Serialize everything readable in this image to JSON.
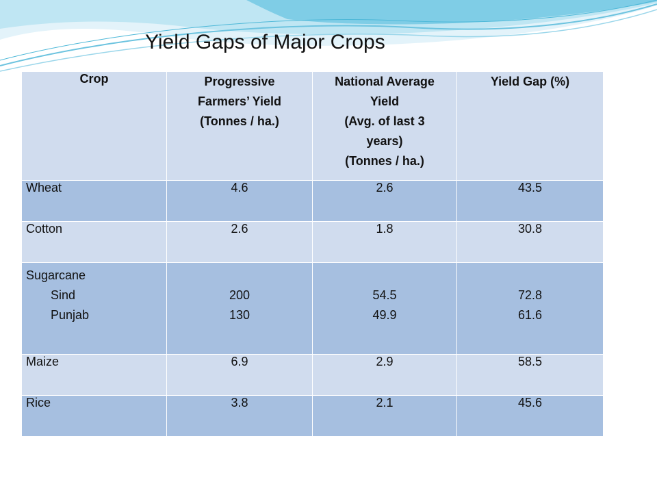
{
  "slide": {
    "title": "Yield Gaps of Major Crops",
    "accent_color": "#4db8d8",
    "gap_text_color": "#e00000"
  },
  "table": {
    "headers": {
      "crop": "Crop",
      "progressive": [
        "Progressive",
        "Farmers’ Yield",
        "(Tonnes / ha.)"
      ],
      "national": [
        "National Average",
        "Yield",
        "(Avg. of last 3",
        "years)",
        "(Tonnes / ha.)"
      ],
      "gap": "Yield Gap (%)"
    },
    "rows": [
      {
        "crop": "Wheat",
        "progressive": "4.6",
        "national": "2.6",
        "gap": "43.5"
      },
      {
        "crop": "Cotton",
        "progressive": "2.6",
        "national": "1.8",
        "gap": "30.8"
      },
      {
        "crop": "Sugarcane",
        "subrows": [
          {
            "crop": "Sind",
            "progressive": "200",
            "national": "54.5",
            "gap": "72.8"
          },
          {
            "crop": "Punjab",
            "progressive": "130",
            "national": "49.9",
            "gap": "61.6"
          }
        ]
      },
      {
        "crop": "Maize",
        "progressive": "6.9",
        "national": "2.9",
        "gap": "58.5"
      },
      {
        "crop": "Rice",
        "progressive": "3.8",
        "national": "2.1",
        "gap": "45.6"
      }
    ]
  }
}
